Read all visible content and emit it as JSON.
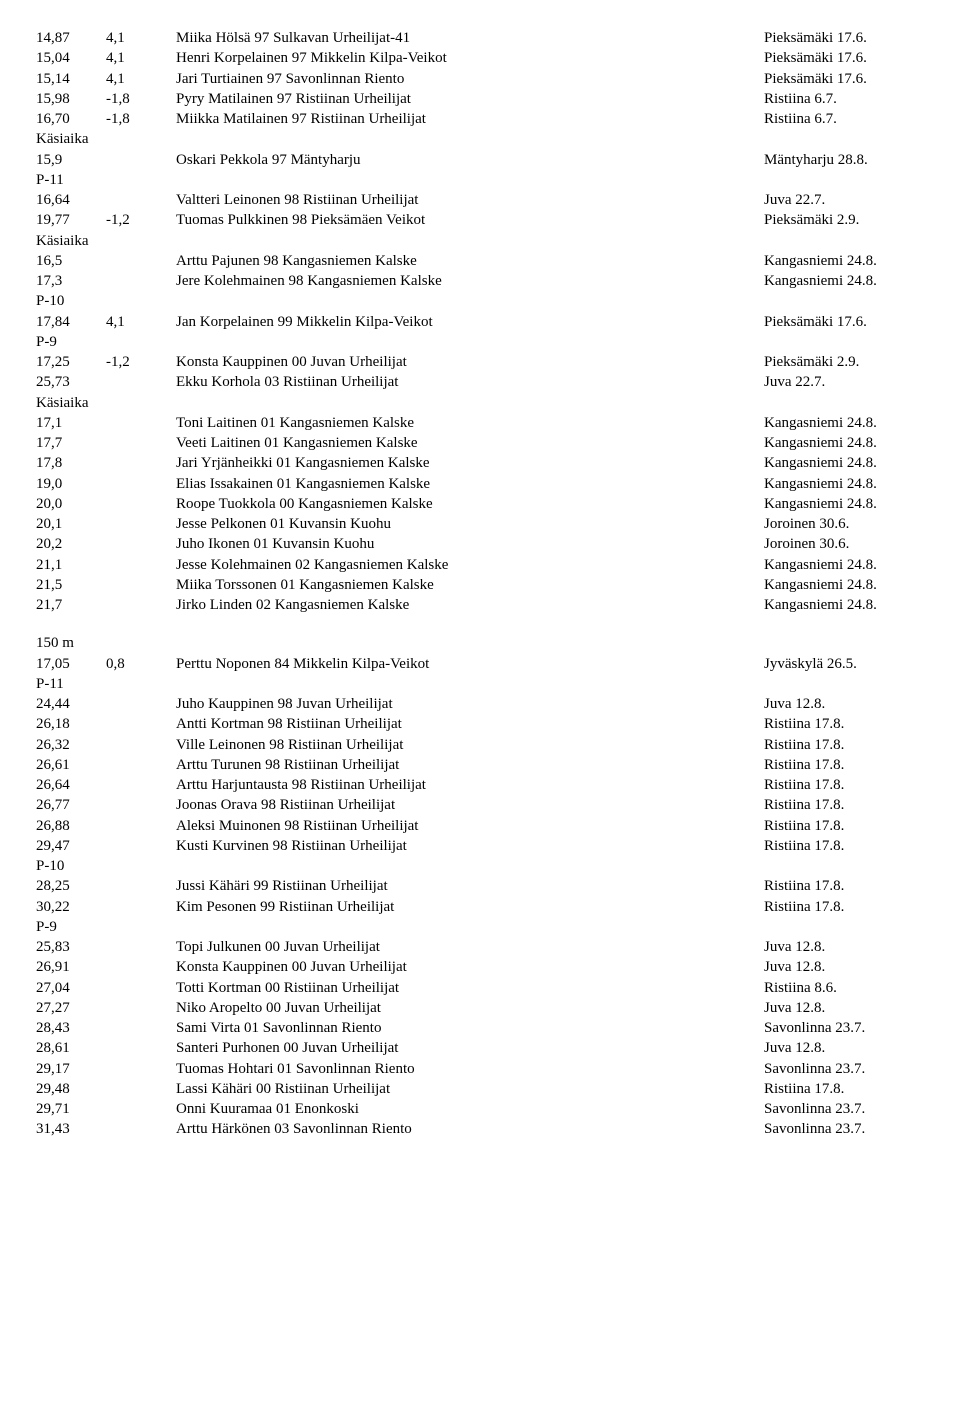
{
  "labels": {
    "kasiaika": "Käsiaika",
    "p11": "P-11",
    "p10": "P-10",
    "p9": "P-9",
    "d150m": "150 m"
  },
  "block1": [
    {
      "c1": "14,87",
      "c2": "4,1",
      "c3": "Miika Hölsä 97 Sulkavan Urheilijat-41",
      "c4": "Pieksämäki 17.6."
    },
    {
      "c1": "15,04",
      "c2": "4,1",
      "c3": "Henri Korpelainen 97 Mikkelin Kilpa-Veikot",
      "c4": "Pieksämäki 17.6."
    },
    {
      "c1": "15,14",
      "c2": "4,1",
      "c3": "Jari Turtiainen 97 Savonlinnan Riento",
      "c4": "Pieksämäki 17.6."
    },
    {
      "c1": "15,98",
      "c2": "-1,8",
      "c3": "Pyry Matilainen 97 Ristiinan Urheilijat",
      "c4": "Ristiina 6.7."
    },
    {
      "c1": "16,70",
      "c2": "-1,8",
      "c3": "Miikka Matilainen 97 Ristiinan Urheilijat",
      "c4": "Ristiina 6.7."
    }
  ],
  "block2": [
    {
      "c1": "15,9",
      "c2": "",
      "c3": "Oskari Pekkola 97 Mäntyharju",
      "c4": "Mäntyharju 28.8."
    }
  ],
  "block3": [
    {
      "c1": "16,64",
      "c2": "",
      "c3": "Valtteri Leinonen 98 Ristiinan Urheilijat",
      "c4": "Juva 22.7."
    },
    {
      "c1": "19,77",
      "c2": "-1,2",
      "c3": "Tuomas Pulkkinen 98 Pieksämäen Veikot",
      "c4": "Pieksämäki 2.9."
    }
  ],
  "block4": [
    {
      "c1": "16,5",
      "c2": "",
      "c3": "Arttu Pajunen 98 Kangasniemen Kalske",
      "c4": "Kangasniemi 24.8."
    },
    {
      "c1": "17,3",
      "c2": "",
      "c3": "Jere Kolehmainen 98 Kangasniemen Kalske",
      "c4": "Kangasniemi 24.8."
    }
  ],
  "block5": [
    {
      "c1": "17,84",
      "c2": "4,1",
      "c3": "Jan Korpelainen 99 Mikkelin Kilpa-Veikot",
      "c4": "Pieksämäki 17.6."
    }
  ],
  "block6": [
    {
      "c1": "17,25",
      "c2": "-1,2",
      "c3": "Konsta Kauppinen 00 Juvan Urheilijat",
      "c4": "Pieksämäki 2.9."
    },
    {
      "c1": "25,73",
      "c2": "",
      "c3": "Ekku Korhola 03 Ristiinan Urheilijat",
      "c4": "Juva 22.7."
    }
  ],
  "block7": [
    {
      "c1": "17,1",
      "c2": "",
      "c3": "Toni Laitinen 01 Kangasniemen Kalske",
      "c4": "Kangasniemi 24.8."
    },
    {
      "c1": "17,7",
      "c2": "",
      "c3": "Veeti Laitinen 01 Kangasniemen Kalske",
      "c4": "Kangasniemi 24.8."
    },
    {
      "c1": "17,8",
      "c2": "",
      "c3": "Jari Yrjänheikki 01 Kangasniemen Kalske",
      "c4": "Kangasniemi 24.8."
    },
    {
      "c1": "19,0",
      "c2": "",
      "c3": "Elias Issakainen 01 Kangasniemen Kalske",
      "c4": "Kangasniemi 24.8."
    },
    {
      "c1": "20,0",
      "c2": "",
      "c3": "Roope Tuokkola 00 Kangasniemen Kalske",
      "c4": "Kangasniemi 24.8."
    },
    {
      "c1": "20,1",
      "c2": "",
      "c3": "Jesse Pelkonen 01 Kuvansin Kuohu",
      "c4": "Joroinen 30.6."
    },
    {
      "c1": "20,2",
      "c2": "",
      "c3": "Juho Ikonen 01 Kuvansin Kuohu",
      "c4": "Joroinen 30.6."
    },
    {
      "c1": "21,1",
      "c2": "",
      "c3": "Jesse Kolehmainen 02 Kangasniemen Kalske",
      "c4": "Kangasniemi 24.8."
    },
    {
      "c1": "21,5",
      "c2": "",
      "c3": "Miika Torssonen 01 Kangasniemen Kalske",
      "c4": "Kangasniemi 24.8."
    },
    {
      "c1": "21,7",
      "c2": "",
      "c3": "Jirko Linden 02 Kangasniemen Kalske",
      "c4": "Kangasniemi 24.8."
    }
  ],
  "block8": [
    {
      "c1": "17,05",
      "c2": "0,8",
      "c3": "Perttu Noponen 84 Mikkelin Kilpa-Veikot",
      "c4": "Jyväskylä 26.5."
    }
  ],
  "block9": [
    {
      "c1": "24,44",
      "c2": "",
      "c3": "Juho Kauppinen 98 Juvan Urheilijat",
      "c4": "Juva 12.8."
    },
    {
      "c1": "26,18",
      "c2": "",
      "c3": "Antti Kortman 98 Ristiinan Urheilijat",
      "c4": "Ristiina 17.8."
    },
    {
      "c1": "26,32",
      "c2": "",
      "c3": "Ville Leinonen 98 Ristiinan Urheilijat",
      "c4": "Ristiina 17.8."
    },
    {
      "c1": "26,61",
      "c2": "",
      "c3": "Arttu Turunen 98 Ristiinan Urheilijat",
      "c4": "Ristiina 17.8."
    },
    {
      "c1": "26,64",
      "c2": "",
      "c3": "Arttu Harjuntausta 98 Ristiinan Urheilijat",
      "c4": "Ristiina 17.8."
    },
    {
      "c1": "26,77",
      "c2": "",
      "c3": "Joonas Orava 98 Ristiinan Urheilijat",
      "c4": "Ristiina 17.8."
    },
    {
      "c1": "26,88",
      "c2": "",
      "c3": "Aleksi Muinonen 98 Ristiinan Urheilijat",
      "c4": "Ristiina 17.8."
    },
    {
      "c1": "29,47",
      "c2": "",
      "c3": "Kusti Kurvinen 98 Ristiinan Urheilijat",
      "c4": "Ristiina 17.8."
    }
  ],
  "block10": [
    {
      "c1": "28,25",
      "c2": "",
      "c3": "Jussi Kähäri 99 Ristiinan Urheilijat",
      "c4": "Ristiina 17.8."
    },
    {
      "c1": "30,22",
      "c2": "",
      "c3": "Kim Pesonen 99 Ristiinan Urheilijat",
      "c4": "Ristiina 17.8."
    }
  ],
  "block11": [
    {
      "c1": "25,83",
      "c2": "",
      "c3": "Topi Julkunen 00 Juvan Urheilijat",
      "c4": "Juva 12.8."
    },
    {
      "c1": "26,91",
      "c2": "",
      "c3": "Konsta Kauppinen 00 Juvan Urheilijat",
      "c4": "Juva 12.8."
    },
    {
      "c1": "27,04",
      "c2": "",
      "c3": "Totti Kortman 00 Ristiinan Urheilijat",
      "c4": "Ristiina 8.6."
    },
    {
      "c1": "27,27",
      "c2": "",
      "c3": "Niko Aropelto 00 Juvan Urheilijat",
      "c4": "Juva 12.8."
    },
    {
      "c1": "28,43",
      "c2": "",
      "c3": "Sami Virta 01 Savonlinnan Riento",
      "c4": "Savonlinna 23.7."
    },
    {
      "c1": "28,61",
      "c2": "",
      "c3": "Santeri Purhonen 00 Juvan Urheilijat",
      "c4": "Juva 12.8."
    },
    {
      "c1": "29,17",
      "c2": "",
      "c3": "Tuomas Hohtari 01 Savonlinnan Riento",
      "c4": "Savonlinna 23.7."
    },
    {
      "c1": "29,48",
      "c2": "",
      "c3": "Lassi Kähäri 00 Ristiinan Urheilijat",
      "c4": "Ristiina 17.8."
    },
    {
      "c1": "29,71",
      "c2": "",
      "c3": "Onni Kuuramaa 01 Enonkoski",
      "c4": "Savonlinna 23.7."
    },
    {
      "c1": "31,43",
      "c2": "",
      "c3": "Arttu Härkönen 03 Savonlinnan Riento",
      "c4": "Savonlinna 23.7."
    }
  ]
}
